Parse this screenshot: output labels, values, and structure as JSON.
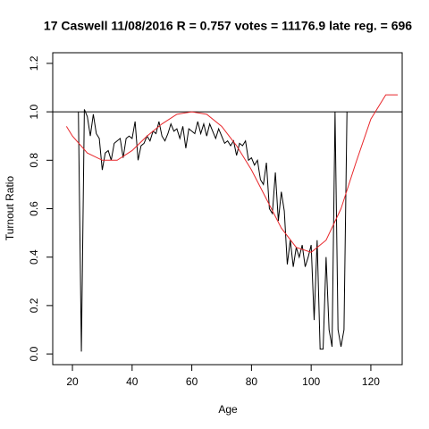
{
  "chart_data": {
    "type": "line",
    "title": "17 Caswell 11/08/2016 R = 0.757 votes = 11176.9 late reg. = 696",
    "xlabel": "Age",
    "ylabel": "Turnout Ratio",
    "xlim": [
      13.4,
      130.5
    ],
    "ylim": [
      -0.044,
      1.244
    ],
    "xticks": [
      20,
      40,
      60,
      80,
      100,
      120
    ],
    "yticks": [
      {
        "value": 0,
        "label": "0.0"
      },
      0.2,
      0.4,
      0.6,
      0.8,
      {
        "value": 1,
        "label": "1.0"
      },
      1.2
    ],
    "hline": 1,
    "series": [
      {
        "color": "#000000",
        "x": [
          22,
          23,
          24,
          25,
          26,
          27,
          28,
          29,
          30,
          31,
          32,
          33,
          34,
          35,
          36,
          37,
          38,
          39,
          40,
          41,
          42,
          43,
          44,
          45,
          46,
          47,
          48,
          49,
          50,
          51,
          52,
          53,
          54,
          55,
          56,
          57,
          58,
          59,
          60,
          61,
          62,
          63,
          64,
          65,
          66,
          67,
          68,
          69,
          70,
          71,
          72,
          73,
          74,
          75,
          76,
          77,
          78,
          79,
          80,
          81,
          82,
          83,
          84,
          85,
          86,
          87,
          88,
          89,
          90,
          91,
          92,
          93,
          94,
          95,
          96,
          97,
          98,
          99,
          100,
          101,
          102,
          103,
          104,
          105,
          106,
          107,
          108,
          109,
          110,
          111,
          112
        ],
        "values": [
          1.0,
          0.01,
          1.01,
          0.98,
          0.9,
          0.99,
          0.91,
          0.89,
          0.76,
          0.83,
          0.84,
          0.8,
          0.87,
          0.88,
          0.89,
          0.81,
          0.89,
          0.9,
          0.89,
          0.96,
          0.8,
          0.86,
          0.87,
          0.9,
          0.88,
          0.92,
          0.91,
          0.96,
          0.9,
          0.88,
          0.91,
          0.95,
          0.92,
          0.93,
          0.89,
          0.94,
          0.85,
          0.93,
          0.92,
          0.91,
          0.96,
          0.91,
          0.95,
          0.9,
          0.95,
          0.92,
          0.89,
          0.93,
          0.9,
          0.87,
          0.88,
          0.86,
          0.88,
          0.82,
          0.87,
          0.86,
          0.88,
          0.8,
          0.81,
          0.78,
          0.8,
          0.72,
          0.7,
          0.79,
          0.6,
          0.58,
          0.75,
          0.55,
          0.67,
          0.59,
          0.37,
          0.47,
          0.36,
          0.44,
          0.4,
          0.45,
          0.36,
          0.4,
          0.45,
          0.14,
          0.47,
          0.02,
          0.02,
          0.4,
          0.1,
          0.03,
          1.0,
          0.1,
          0.03,
          0.1,
          1.0
        ]
      },
      {
        "color": "#e8262a",
        "x": [
          18,
          20,
          25,
          30,
          35,
          40,
          45,
          50,
          55,
          60,
          65,
          70,
          75,
          80,
          85,
          90,
          95,
          100,
          105,
          110,
          115,
          120,
          125,
          129
        ],
        "values": [
          0.94,
          0.9,
          0.83,
          0.8,
          0.8,
          0.84,
          0.9,
          0.95,
          0.99,
          1.0,
          0.99,
          0.94,
          0.86,
          0.76,
          0.64,
          0.52,
          0.44,
          0.42,
          0.47,
          0.6,
          0.79,
          0.97,
          1.07,
          1.07
        ]
      }
    ]
  }
}
